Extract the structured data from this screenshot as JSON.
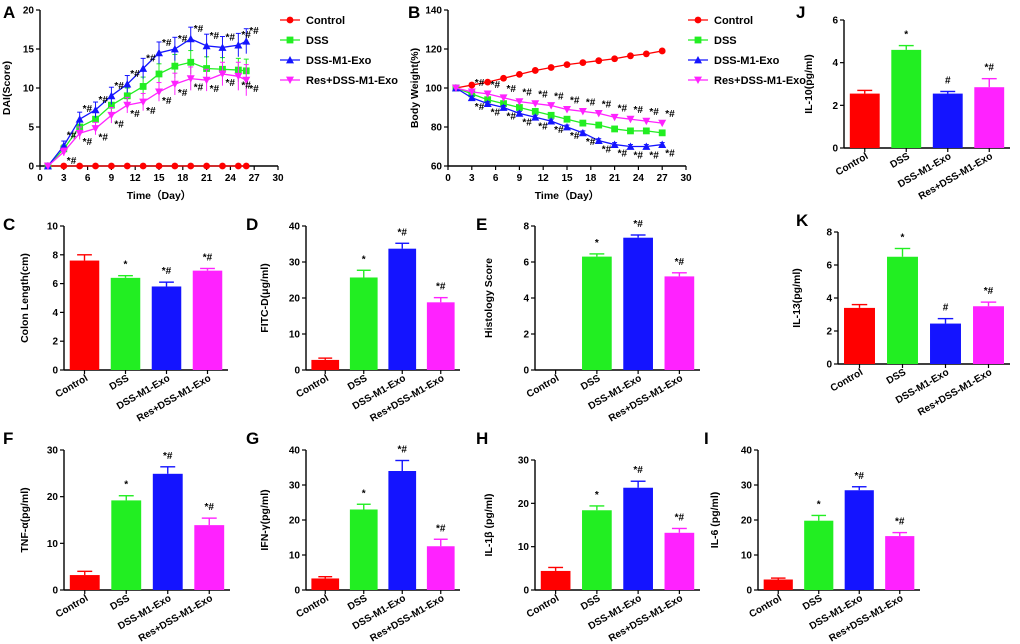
{
  "figure": {
    "categories": [
      "Control",
      "DSS",
      "DSS-M1-Exo",
      "Res+DSS-M1-Exo"
    ],
    "colors": {
      "Control": "#ff0000",
      "DSS": "#22ee22",
      "DSS-M1-Exo": "#1414ff",
      "Res+DSS-M1-Exo": "#ff22ff"
    },
    "star": "*",
    "star_hash": "*#",
    "hash": "#"
  },
  "chart_data": [
    {
      "id": "A",
      "type": "line",
      "title": "",
      "xlabel": "Time（Day）",
      "ylabel": "DAI(Score)",
      "xlim": [
        0,
        30
      ],
      "ylim": [
        0,
        20
      ],
      "xticks": [
        0,
        3,
        6,
        9,
        12,
        15,
        18,
        21,
        24,
        27,
        30
      ],
      "yticks": [
        0,
        5,
        10,
        15,
        20
      ],
      "series": [
        {
          "name": "Control",
          "marker": "circle",
          "x": [
            1,
            3,
            5,
            7,
            9,
            11,
            13,
            15,
            17,
            19,
            21,
            23,
            25,
            26
          ],
          "values": [
            0,
            0,
            0,
            0,
            0,
            0,
            0,
            0,
            0,
            0,
            0,
            0,
            0,
            0
          ]
        },
        {
          "name": "DSS",
          "marker": "square",
          "x": [
            1,
            3,
            5,
            7,
            9,
            11,
            13,
            15,
            17,
            19,
            21,
            23,
            25,
            26
          ],
          "values": [
            0,
            2.2,
            5.0,
            6.0,
            7.8,
            9.0,
            10.2,
            11.8,
            12.8,
            13.3,
            12.5,
            12.4,
            12.3,
            12.2
          ],
          "errors": [
            0,
            0.5,
            0.8,
            0.9,
            1.0,
            1.0,
            1.2,
            1.3,
            1.5,
            1.5,
            1.5,
            1.5,
            1.5,
            1.5
          ]
        },
        {
          "name": "DSS-M1-Exo",
          "marker": "triangle",
          "x": [
            1,
            3,
            5,
            7,
            9,
            11,
            13,
            15,
            17,
            19,
            21,
            23,
            25,
            26
          ],
          "values": [
            0,
            2.6,
            6.0,
            7.2,
            9.0,
            10.5,
            12.5,
            14.5,
            15.0,
            16.3,
            15.4,
            15.2,
            15.5,
            16.0
          ],
          "errors": [
            0,
            0.6,
            0.9,
            1.0,
            1.1,
            1.1,
            1.3,
            1.4,
            1.5,
            1.5,
            1.5,
            1.4,
            1.5,
            1.6
          ]
        },
        {
          "name": "Res+DSS-M1-Exo",
          "marker": "triangle-down",
          "x": [
            1,
            3,
            5,
            7,
            9,
            11,
            13,
            15,
            17,
            19,
            21,
            23,
            25,
            26
          ],
          "values": [
            0,
            1.8,
            4.2,
            4.8,
            6.5,
            7.8,
            8.2,
            9.5,
            10.5,
            11.2,
            11.0,
            11.8,
            11.5,
            11.0
          ],
          "errors": [
            0,
            0.5,
            0.8,
            0.8,
            1.0,
            1.0,
            1.1,
            1.2,
            1.4,
            1.5,
            1.4,
            1.5,
            1.8,
            2.0
          ]
        }
      ],
      "legend": {
        "placement": "right"
      }
    },
    {
      "id": "B",
      "type": "line",
      "title": "",
      "xlabel": "Time（Day）",
      "ylabel": "Body Weight(%)",
      "xlim": [
        0,
        30
      ],
      "ylim": [
        60,
        140
      ],
      "xticks": [
        0,
        3,
        6,
        9,
        12,
        15,
        18,
        21,
        24,
        27,
        30
      ],
      "yticks": [
        60,
        80,
        100,
        120,
        140
      ],
      "series": [
        {
          "name": "Control",
          "marker": "circle",
          "x": [
            1,
            3,
            5,
            7,
            9,
            11,
            13,
            15,
            17,
            19,
            21,
            23,
            25,
            27
          ],
          "values": [
            100,
            101.5,
            103,
            105,
            107,
            109,
            110.5,
            112,
            113,
            114,
            115,
            116.5,
            117.5,
            119
          ]
        },
        {
          "name": "DSS",
          "marker": "square",
          "x": [
            1,
            3,
            5,
            7,
            9,
            11,
            13,
            15,
            17,
            19,
            21,
            23,
            25,
            27
          ],
          "values": [
            100,
            97,
            94,
            92,
            90,
            88,
            86,
            84,
            82,
            81,
            79,
            78,
            78,
            77
          ],
          "errors": [
            0,
            1,
            1,
            1,
            1,
            1,
            1,
            1,
            1,
            1,
            1,
            1,
            1,
            1
          ]
        },
        {
          "name": "DSS-M1-Exo",
          "marker": "triangle",
          "x": [
            1,
            3,
            5,
            7,
            9,
            11,
            13,
            15,
            17,
            19,
            21,
            23,
            25,
            27
          ],
          "values": [
            100,
            95,
            92,
            90,
            87,
            85,
            83,
            80,
            77,
            73,
            71,
            70,
            70,
            71
          ],
          "errors": [
            0,
            1,
            1,
            1,
            1,
            1,
            1,
            1,
            1,
            1,
            1,
            1,
            1,
            1
          ]
        },
        {
          "name": "Res+DSS-M1-Exo",
          "marker": "triangle-down",
          "x": [
            1,
            3,
            5,
            7,
            9,
            11,
            13,
            15,
            17,
            19,
            21,
            23,
            25,
            27
          ],
          "values": [
            100,
            98,
            97,
            95,
            93,
            92,
            91,
            89,
            88,
            87,
            85,
            84,
            83,
            82
          ],
          "errors": [
            0,
            1,
            1,
            1,
            1,
            1,
            1,
            1,
            1,
            1,
            1,
            1,
            1,
            1
          ]
        }
      ],
      "legend": {
        "placement": "right"
      }
    },
    {
      "id": "C",
      "type": "bar",
      "title": "",
      "xlabel": "",
      "ylabel": "Colon Length(cm)",
      "ylim": [
        0,
        10
      ],
      "yticks": [
        0,
        2,
        4,
        6,
        8,
        10
      ],
      "categories": [
        "Control",
        "DSS",
        "DSS-M1-Exo",
        "Res+DSS-M1-Exo"
      ],
      "values": [
        7.6,
        6.4,
        5.8,
        6.9
      ],
      "errors": [
        0.4,
        0.15,
        0.3,
        0.15
      ],
      "annotations": [
        "",
        "*",
        "*#",
        "*#"
      ]
    },
    {
      "id": "D",
      "type": "bar",
      "title": "",
      "xlabel": "",
      "ylabel": "FITC-D(μg/ml)",
      "ylim": [
        0,
        40
      ],
      "yticks": [
        0,
        10,
        20,
        30,
        40
      ],
      "categories": [
        "Control",
        "DSS",
        "DSS-M1-Exo",
        "Res+DSS-M1-Exo"
      ],
      "values": [
        2.8,
        25.7,
        33.7,
        18.8
      ],
      "errors": [
        0.5,
        2.0,
        1.5,
        1.3
      ],
      "annotations": [
        "",
        "*",
        "*#",
        "*#"
      ]
    },
    {
      "id": "E",
      "type": "bar",
      "title": "",
      "xlabel": "",
      "ylabel": "Histology Score",
      "ylim": [
        0,
        8
      ],
      "yticks": [
        0,
        2,
        4,
        6,
        8
      ],
      "categories": [
        "Control",
        "DSS",
        "DSS-M1-Exo",
        "Res+DSS-M1-Exo"
      ],
      "values": [
        0,
        6.3,
        7.35,
        5.2
      ],
      "errors": [
        0,
        0.15,
        0.15,
        0.2
      ],
      "annotations": [
        "",
        "*",
        "*#",
        "*#"
      ]
    },
    {
      "id": "J",
      "type": "bar",
      "title": "",
      "xlabel": "",
      "ylabel": "IL-10(pg/ml)",
      "ylim": [
        0,
        6
      ],
      "yticks": [
        0,
        2,
        4,
        6
      ],
      "categories": [
        "Control",
        "DSS",
        "DSS-M1-Exo",
        "Res+DSS-M1-Exo"
      ],
      "values": [
        2.55,
        4.6,
        2.55,
        2.85
      ],
      "errors": [
        0.15,
        0.2,
        0.1,
        0.4
      ],
      "annotations": [
        "",
        "*",
        "#",
        "*#"
      ]
    },
    {
      "id": "K",
      "type": "bar",
      "title": "",
      "xlabel": "",
      "ylabel": "IL-13(pg/ml)",
      "ylim": [
        0,
        8
      ],
      "yticks": [
        0,
        2,
        4,
        6,
        8
      ],
      "categories": [
        "Control",
        "DSS",
        "DSS-M1-Exo",
        "Res+DSS-M1-Exo"
      ],
      "values": [
        3.4,
        6.5,
        2.45,
        3.5
      ],
      "errors": [
        0.2,
        0.5,
        0.3,
        0.25
      ],
      "annotations": [
        "",
        "*",
        "#",
        "*#"
      ]
    },
    {
      "id": "F",
      "type": "bar",
      "title": "",
      "xlabel": "",
      "ylabel": "TNF-α(pg/ml)",
      "ylim": [
        0,
        30
      ],
      "yticks": [
        0,
        10,
        20,
        30
      ],
      "categories": [
        "Control",
        "DSS",
        "DSS-M1-Exo",
        "Res+DSS-M1-Exo"
      ],
      "values": [
        3.2,
        19.2,
        24.9,
        13.9
      ],
      "errors": [
        0.8,
        1.0,
        1.5,
        1.5
      ],
      "annotations": [
        "",
        "*",
        "*#",
        "*#"
      ]
    },
    {
      "id": "G",
      "type": "bar",
      "title": "",
      "xlabel": "",
      "ylabel": "IFN-γ(pg/ml)",
      "ylim": [
        0,
        40
      ],
      "yticks": [
        0,
        10,
        20,
        30,
        40
      ],
      "categories": [
        "Control",
        "DSS",
        "DSS-M1-Exo",
        "Res+DSS-M1-Exo"
      ],
      "values": [
        3.3,
        23.0,
        34.0,
        12.5
      ],
      "errors": [
        0.5,
        1.5,
        3.0,
        2.0
      ],
      "annotations": [
        "",
        "*",
        "*#",
        "*#"
      ]
    },
    {
      "id": "H",
      "type": "bar",
      "title": "",
      "xlabel": "",
      "ylabel": "IL-1β (pg/ml)",
      "ylim": [
        0,
        30
      ],
      "yticks": [
        0,
        10,
        20,
        30
      ],
      "categories": [
        "Control",
        "DSS",
        "DSS-M1-Exo",
        "Res+DSS-M1-Exo"
      ],
      "values": [
        4.4,
        18.4,
        23.6,
        13.2
      ],
      "errors": [
        0.8,
        1.0,
        1.5,
        1.0
      ],
      "annotations": [
        "",
        "*",
        "*#",
        "*#"
      ]
    },
    {
      "id": "I",
      "type": "bar",
      "title": "",
      "xlabel": "",
      "ylabel": "IL-6 (pg/ml)",
      "ylim": [
        0,
        40
      ],
      "yticks": [
        0,
        10,
        20,
        30,
        40
      ],
      "categories": [
        "Control",
        "DSS",
        "DSS-M1-Exo",
        "Res+DSS-M1-Exo"
      ],
      "values": [
        3.0,
        19.8,
        28.5,
        15.4
      ],
      "errors": [
        0.4,
        1.5,
        1.0,
        1.0
      ],
      "annotations": [
        "",
        "*",
        "*#",
        "*#"
      ]
    }
  ]
}
